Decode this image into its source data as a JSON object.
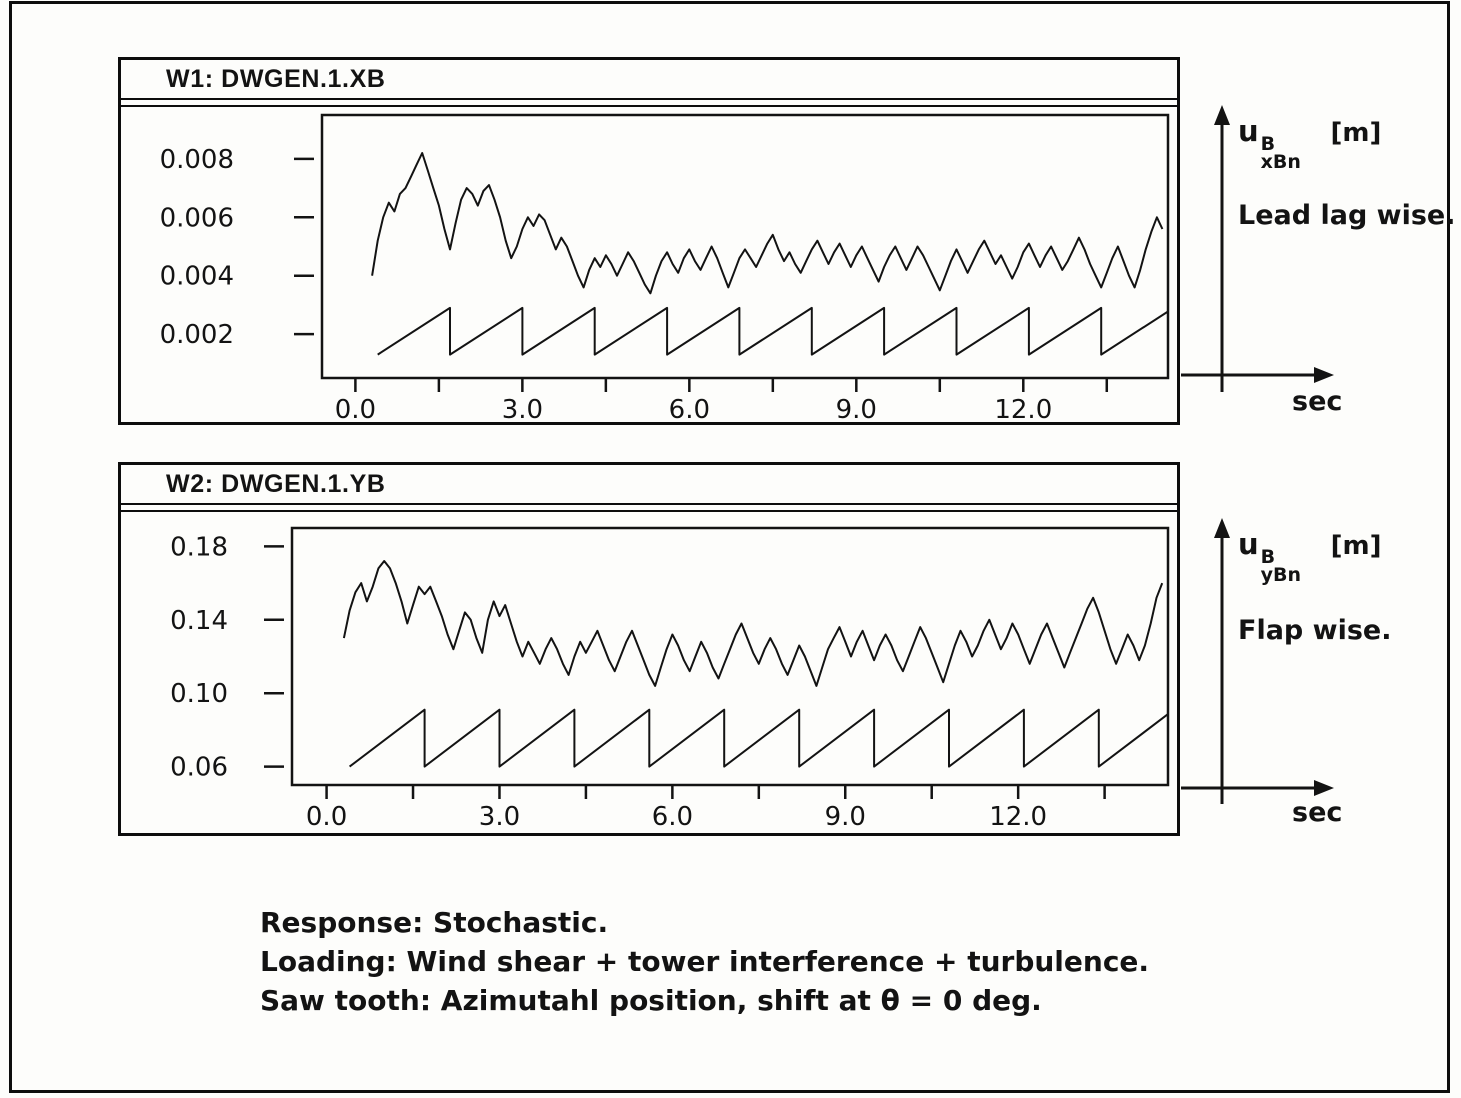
{
  "caption": {
    "lines": [
      "Response: Stochastic.",
      "Loading: Wind shear + tower interference + turbulence.",
      "Saw tooth: Azimutahl position, shift at θ = 0 deg."
    ]
  },
  "chart_data": [
    {
      "type": "line",
      "title": "W1: DWGEN.1.XB",
      "xlabel": "sec",
      "ylabel": {
        "base": "u",
        "sup": "B",
        "sub": "xBn",
        "unit": "[m]",
        "desc": "Lead lag wise."
      },
      "xlim": [
        -0.6,
        14.6
      ],
      "ylim": [
        0.0005,
        0.0095
      ],
      "grid": false,
      "legend": "none",
      "x_ticks": [
        {
          "v": 0.0,
          "label": "0.0"
        },
        {
          "v": 1.5
        },
        {
          "v": 3.0,
          "label": "3.0"
        },
        {
          "v": 4.5
        },
        {
          "v": 6.0,
          "label": "6.0"
        },
        {
          "v": 7.5
        },
        {
          "v": 9.0,
          "label": "9.0"
        },
        {
          "v": 10.5
        },
        {
          "v": 12.0,
          "label": "12.0"
        },
        {
          "v": 13.5
        }
      ],
      "y_ticks": [
        {
          "v": 0.002,
          "label": "0.002"
        },
        {
          "v": 0.004,
          "label": "0.004"
        },
        {
          "v": 0.006,
          "label": "0.006"
        },
        {
          "v": 0.008,
          "label": "0.008"
        }
      ],
      "series": [
        {
          "name": "lead-lag-response",
          "t0": 0.3,
          "dt": 0.1,
          "y_scale": 0.001,
          "values": [
            4.0,
            5.2,
            6.0,
            6.5,
            6.2,
            6.8,
            7.0,
            7.4,
            7.8,
            8.2,
            7.6,
            7.0,
            6.4,
            5.6,
            4.9,
            5.8,
            6.6,
            7.0,
            6.8,
            6.4,
            6.9,
            7.1,
            6.6,
            6.0,
            5.2,
            4.6,
            5.0,
            5.6,
            6.0,
            5.7,
            6.1,
            5.9,
            5.4,
            4.9,
            5.3,
            5.0,
            4.5,
            4.0,
            3.6,
            4.2,
            4.6,
            4.3,
            4.7,
            4.4,
            4.0,
            4.4,
            4.8,
            4.5,
            4.1,
            3.7,
            3.4,
            4.0,
            4.5,
            4.8,
            4.4,
            4.1,
            4.6,
            4.9,
            4.5,
            4.2,
            4.6,
            5.0,
            4.6,
            4.1,
            3.6,
            4.1,
            4.6,
            4.9,
            4.6,
            4.3,
            4.7,
            5.1,
            5.4,
            4.9,
            4.5,
            4.8,
            4.4,
            4.1,
            4.5,
            4.9,
            5.2,
            4.8,
            4.4,
            4.8,
            5.1,
            4.7,
            4.3,
            4.7,
            5.0,
            4.6,
            4.2,
            3.8,
            4.3,
            4.7,
            5.0,
            4.6,
            4.2,
            4.6,
            5.0,
            4.7,
            4.3,
            3.9,
            3.5,
            4.0,
            4.5,
            4.9,
            4.5,
            4.1,
            4.5,
            4.9,
            5.2,
            4.8,
            4.4,
            4.7,
            4.3,
            3.9,
            4.3,
            4.8,
            5.1,
            4.7,
            4.3,
            4.7,
            5.0,
            4.6,
            4.2,
            4.5,
            4.9,
            5.3,
            4.9,
            4.4,
            4.0,
            3.6,
            4.1,
            4.6,
            5.0,
            4.5,
            4.0,
            3.6,
            4.2,
            4.9,
            5.5,
            6.0,
            5.6
          ]
        },
        {
          "name": "azimuth-sawtooth",
          "kind": "sawtooth",
          "t_start": 0.4,
          "t_end": 14.6,
          "period": 1.3,
          "low": 0.0013,
          "high": 0.0029
        }
      ]
    },
    {
      "type": "line",
      "title": "W2: DWGEN.1.YB",
      "xlabel": "sec",
      "ylabel": {
        "base": "u",
        "sup": "B",
        "sub": "yBn",
        "unit": "[m]",
        "desc": "Flap wise."
      },
      "xlim": [
        -0.6,
        14.6
      ],
      "ylim": [
        0.05,
        0.19
      ],
      "grid": false,
      "legend": "none",
      "x_ticks": [
        {
          "v": 0.0,
          "label": "0.0"
        },
        {
          "v": 1.5
        },
        {
          "v": 3.0,
          "label": "3.0"
        },
        {
          "v": 4.5
        },
        {
          "v": 6.0,
          "label": "6.0"
        },
        {
          "v": 7.5
        },
        {
          "v": 9.0,
          "label": "9.0"
        },
        {
          "v": 10.5
        },
        {
          "v": 12.0,
          "label": "12.0"
        },
        {
          "v": 13.5
        }
      ],
      "y_ticks": [
        {
          "v": 0.06,
          "label": "0.06"
        },
        {
          "v": 0.1,
          "label": "0.10"
        },
        {
          "v": 0.14,
          "label": "0.14"
        },
        {
          "v": 0.18,
          "label": "0.18"
        }
      ],
      "series": [
        {
          "name": "flap-response",
          "t0": 0.3,
          "dt": 0.1,
          "y_scale": 1,
          "values": [
            0.13,
            0.145,
            0.155,
            0.16,
            0.15,
            0.158,
            0.168,
            0.172,
            0.168,
            0.16,
            0.15,
            0.138,
            0.148,
            0.158,
            0.154,
            0.158,
            0.15,
            0.142,
            0.132,
            0.124,
            0.134,
            0.144,
            0.14,
            0.13,
            0.122,
            0.14,
            0.15,
            0.142,
            0.148,
            0.138,
            0.128,
            0.12,
            0.128,
            0.122,
            0.116,
            0.124,
            0.13,
            0.124,
            0.116,
            0.11,
            0.12,
            0.128,
            0.122,
            0.128,
            0.134,
            0.126,
            0.118,
            0.112,
            0.12,
            0.128,
            0.134,
            0.126,
            0.118,
            0.11,
            0.104,
            0.114,
            0.124,
            0.132,
            0.126,
            0.118,
            0.112,
            0.12,
            0.128,
            0.122,
            0.114,
            0.108,
            0.116,
            0.124,
            0.132,
            0.138,
            0.13,
            0.122,
            0.116,
            0.124,
            0.13,
            0.124,
            0.116,
            0.11,
            0.118,
            0.126,
            0.12,
            0.112,
            0.104,
            0.114,
            0.124,
            0.13,
            0.136,
            0.128,
            0.12,
            0.128,
            0.134,
            0.126,
            0.118,
            0.126,
            0.132,
            0.126,
            0.118,
            0.112,
            0.12,
            0.128,
            0.136,
            0.13,
            0.122,
            0.114,
            0.106,
            0.116,
            0.126,
            0.134,
            0.128,
            0.12,
            0.126,
            0.134,
            0.14,
            0.132,
            0.124,
            0.13,
            0.138,
            0.132,
            0.124,
            0.116,
            0.124,
            0.132,
            0.138,
            0.13,
            0.122,
            0.114,
            0.122,
            0.13,
            0.138,
            0.146,
            0.152,
            0.144,
            0.134,
            0.124,
            0.116,
            0.124,
            0.132,
            0.126,
            0.118,
            0.126,
            0.138,
            0.152,
            0.16
          ]
        },
        {
          "name": "azimuth-sawtooth",
          "kind": "sawtooth",
          "t_start": 0.4,
          "t_end": 14.6,
          "period": 1.3,
          "low": 0.06,
          "high": 0.091
        }
      ]
    }
  ]
}
